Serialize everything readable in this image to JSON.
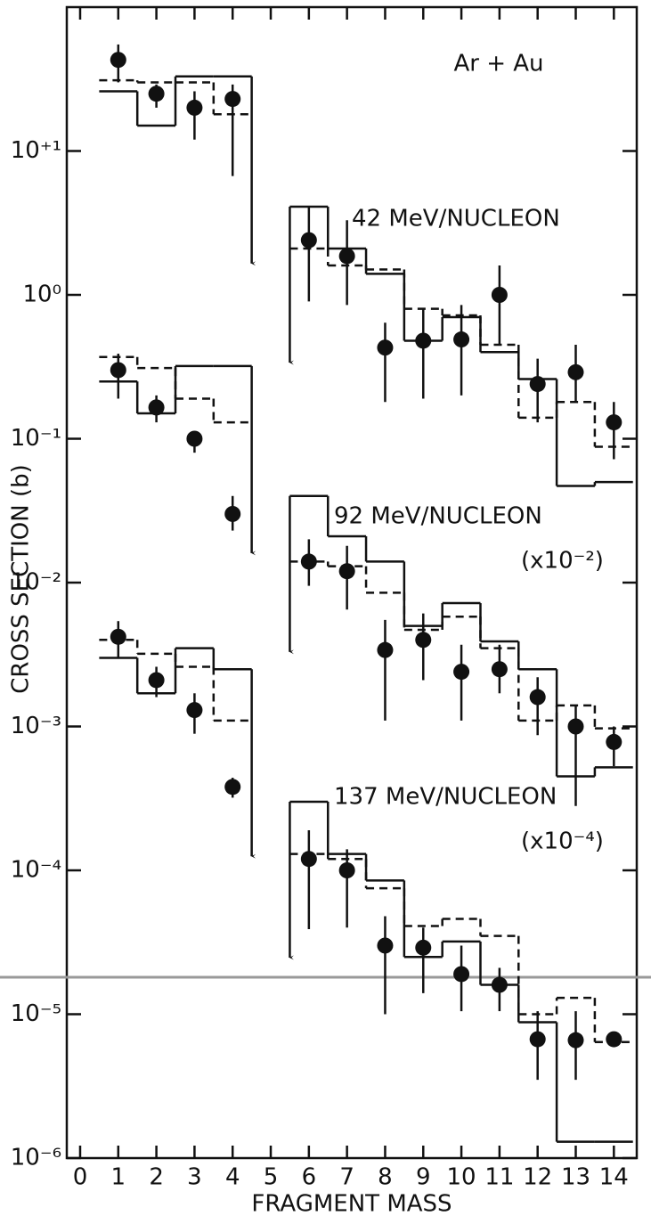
{
  "chart_data": {
    "type": "errorbar",
    "title": "Ar + Au",
    "x_label": "FRAGMENT MASS",
    "y_label": "CROSS SECTION (b)",
    "log_y": true,
    "xlim": [
      -0.35,
      14.6
    ],
    "ylim": [
      1e-06,
      100
    ],
    "xticks": [
      0,
      1,
      2,
      3,
      4,
      5,
      6,
      7,
      8,
      9,
      10,
      11,
      12,
      13,
      14
    ],
    "yticks": [
      {
        "value": 10,
        "label": "10⁺¹"
      },
      {
        "value": 1,
        "label": "10⁰"
      },
      {
        "value": 0.1,
        "label": "10⁻¹"
      },
      {
        "value": 0.01,
        "label": "10⁻²"
      },
      {
        "value": 0.001,
        "label": "10⁻³"
      },
      {
        "value": 0.0001,
        "label": "10⁻⁴"
      },
      {
        "value": 1e-05,
        "label": "10⁻⁵"
      },
      {
        "value": 1e-06,
        "label": "10⁻⁶"
      }
    ],
    "x": [
      1,
      2,
      3,
      4,
      6,
      7,
      8,
      9,
      10,
      11,
      12,
      13,
      14
    ],
    "series": [
      {
        "name": "42 MeV/NUCLEON",
        "values": [
          43,
          25,
          20,
          23,
          2.4,
          1.86,
          0.43,
          0.48,
          0.49,
          1.0,
          0.24,
          0.29,
          0.13
        ],
        "upper": [
          55,
          29,
          26,
          29,
          4.1,
          3.3,
          0.64,
          0.79,
          0.85,
          1.6,
          0.36,
          0.45,
          0.18
        ],
        "lower": [
          30,
          20,
          12,
          6.7,
          0.9,
          0.85,
          0.18,
          0.19,
          0.2,
          0.45,
          0.13,
          0.18,
          0.072
        ],
        "solid": [
          26,
          15,
          33,
          33,
          4.1,
          2.1,
          1.4,
          0.48,
          0.7,
          0.4,
          0.26,
          0.047,
          0.05
        ],
        "dashed": [
          31,
          30,
          30,
          18,
          2.1,
          1.6,
          1.5,
          0.8,
          0.72,
          0.45,
          0.14,
          0.18,
          0.088
        ]
      },
      {
        "name": "92 MeV/NUCLEON",
        "scale_label": "(x10⁻²)",
        "values": [
          0.3,
          0.165,
          0.1,
          0.03,
          0.014,
          0.012,
          0.0034,
          0.004,
          0.0024,
          0.0025,
          0.0016,
          0.001,
          0.00078
        ],
        "upper": [
          0.39,
          0.2,
          0.11,
          0.04,
          0.02,
          0.018,
          0.0055,
          0.0061,
          0.0037,
          0.0037,
          0.0022,
          0.0014,
          0.001
        ],
        "lower": [
          0.19,
          0.13,
          0.08,
          0.023,
          0.0095,
          0.0065,
          0.0011,
          0.0021,
          0.0011,
          0.0017,
          0.00087,
          0.00028,
          0.00053
        ],
        "solid": [
          0.25,
          0.15,
          0.32,
          0.32,
          0.04,
          0.021,
          0.014,
          0.005,
          0.0072,
          0.0039,
          0.0025,
          0.00045,
          0.00052
        ],
        "dashed": [
          0.37,
          0.31,
          0.19,
          0.13,
          0.014,
          0.013,
          0.0085,
          0.0047,
          0.0058,
          0.0035,
          0.0011,
          0.0014,
          0.00097
        ]
      },
      {
        "name": "137 MeV/NUCLEON",
        "scale_label": "(x10⁻⁴)",
        "values": [
          0.0042,
          0.0021,
          0.0013,
          0.00038,
          0.00012,
          0.0001,
          3e-05,
          2.9e-05,
          1.9e-05,
          1.6e-05,
          6.7e-06,
          6.6e-06,
          6.7e-06
        ],
        "upper": [
          0.0054,
          0.0026,
          0.0017,
          0.00044,
          0.00019,
          0.00014,
          4.8e-05,
          4e-05,
          3e-05,
          2.1e-05,
          1.05e-05,
          1.05e-05,
          7.5e-06
        ],
        "lower": [
          0.003,
          0.0016,
          0.00089,
          0.00032,
          3.9e-05,
          4e-05,
          1e-05,
          1.4e-05,
          1.05e-05,
          1.05e-05,
          3.5e-06,
          3.5e-06,
          6.1e-06
        ],
        "solid": [
          0.003,
          0.0017,
          0.0035,
          0.0025,
          0.0003,
          0.00013,
          8.5e-05,
          2.5e-05,
          3.2e-05,
          1.6e-05,
          8.8e-06,
          1.3e-06,
          1.3e-06
        ],
        "dashed": [
          0.004,
          0.0032,
          0.0026,
          0.0011,
          0.00013,
          0.00012,
          7.5e-05,
          4.1e-05,
          4.6e-05,
          3.5e-05,
          1e-05,
          1.3e-05,
          6.4e-06
        ]
      }
    ]
  }
}
